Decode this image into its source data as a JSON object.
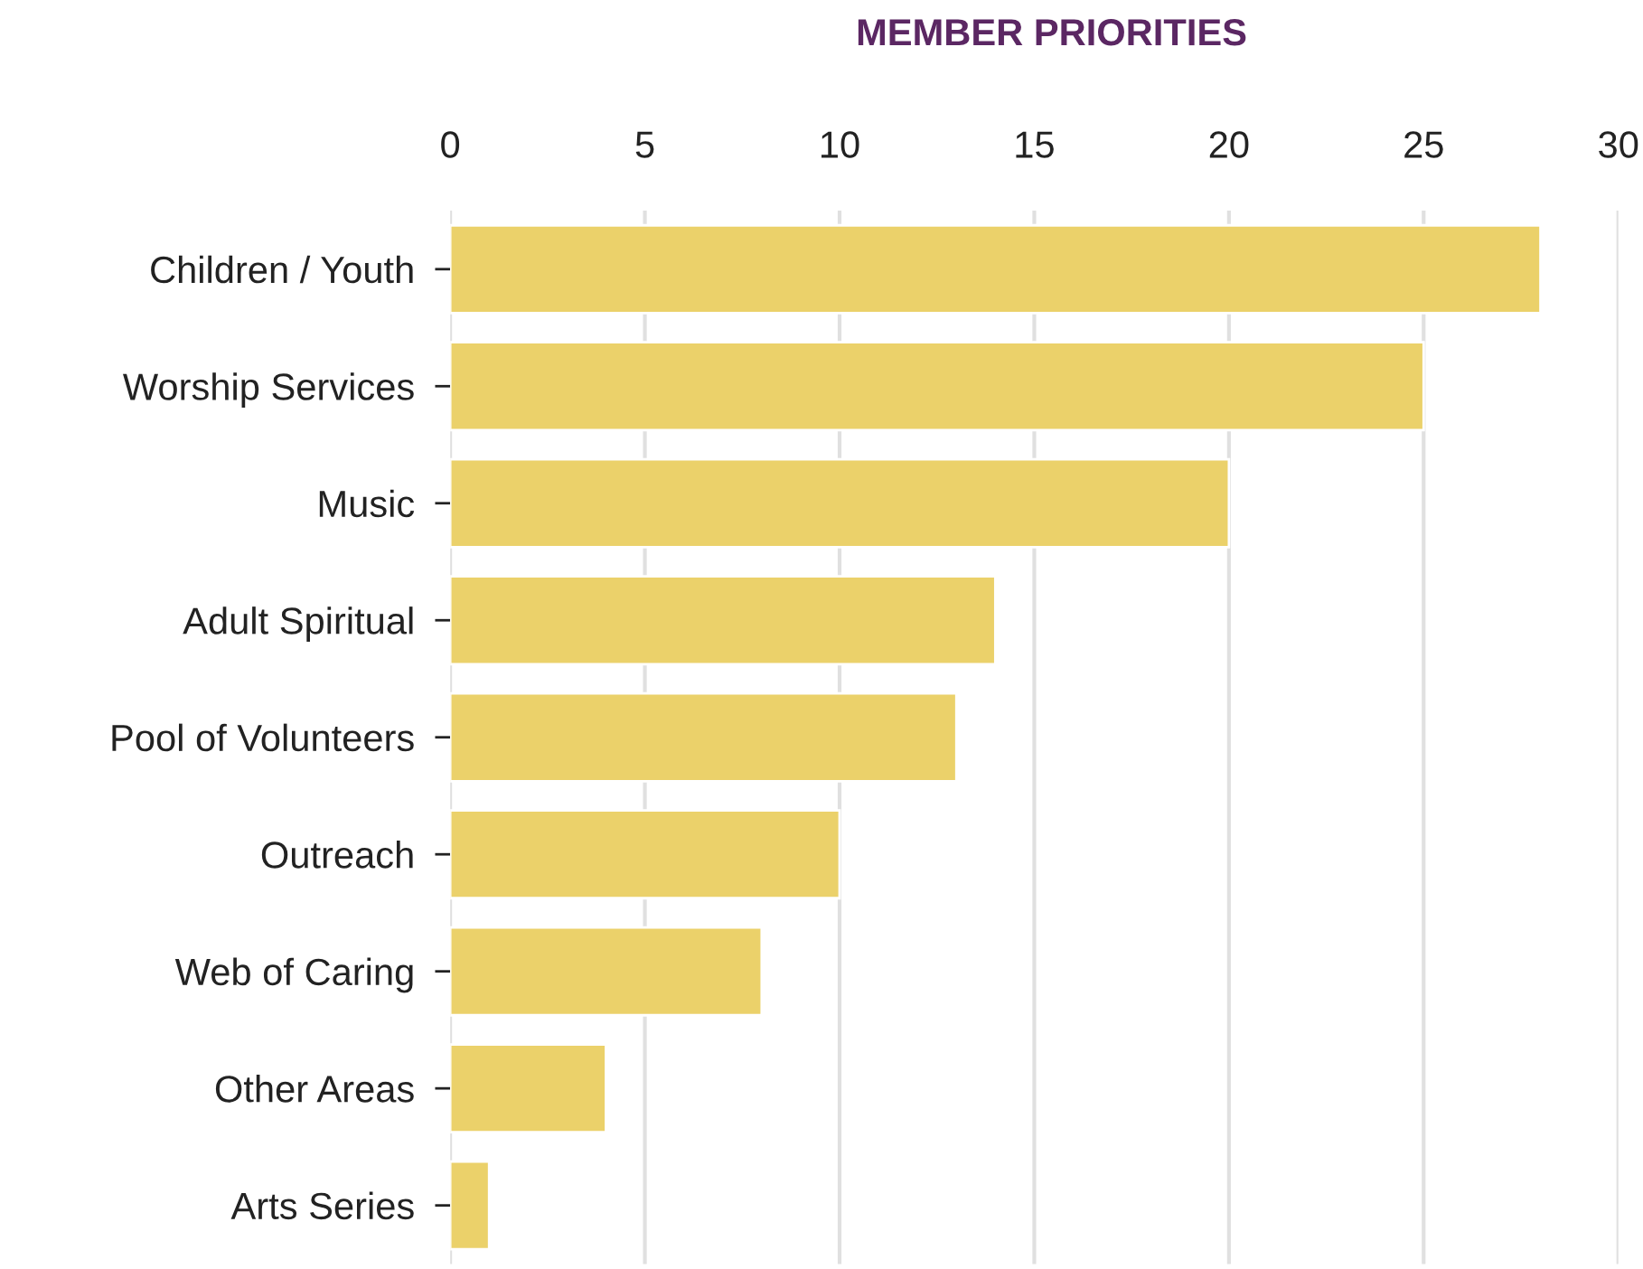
{
  "chart_data": {
    "type": "bar",
    "orientation": "horizontal",
    "title": "MEMBER PRIORITIES",
    "categories": [
      "Children / Youth",
      "Worship Services",
      "Music",
      "Adult Spiritual",
      "Pool of Volunteers",
      "Outreach",
      "Web of Caring",
      "Other Areas",
      "Arts Series"
    ],
    "values": [
      28,
      25,
      20,
      14,
      13,
      10,
      8,
      4,
      1
    ],
    "color": "#ebd16a",
    "xlim": [
      0,
      30
    ],
    "xticks": [
      0,
      5,
      10,
      15,
      20,
      25,
      30
    ],
    "grid": "x"
  }
}
